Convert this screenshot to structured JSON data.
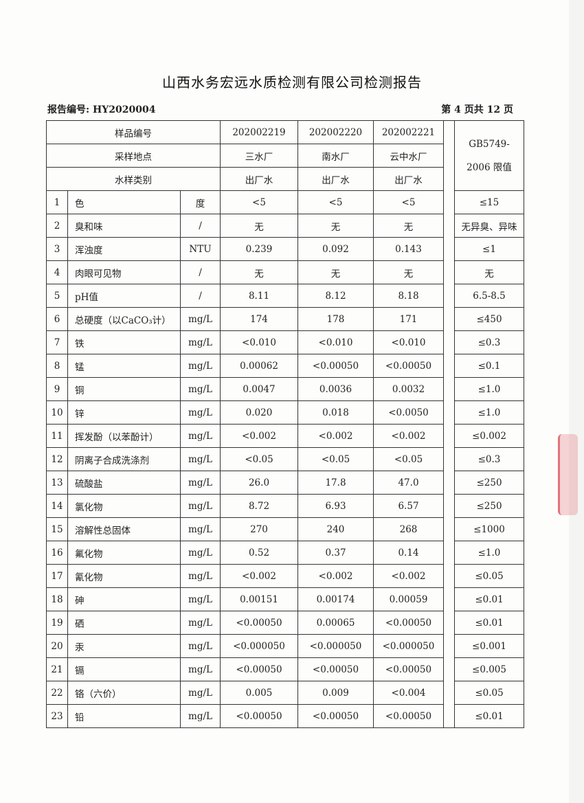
{
  "title": "山西水务宏远水质检测有限公司检测报告",
  "report_no": "报告编号: HY2020004",
  "page_info": "第 4 页共 12 页",
  "header": {
    "sample_no_label": "样品编号",
    "location_label": "采样地点",
    "type_label": "水样类别",
    "limit_label_1": "GB5749-",
    "limit_label_2": "2006 限值",
    "samples": [
      {
        "no": "202002219",
        "location": "三水厂",
        "type": "出厂水"
      },
      {
        "no": "202002220",
        "location": "南水厂",
        "type": "出厂水"
      },
      {
        "no": "202002221",
        "location": "云中水厂",
        "type": "出厂水"
      }
    ]
  },
  "rows": [
    {
      "n": "1",
      "item": "色",
      "unit": "度",
      "v": [
        "<5",
        "<5",
        "<5"
      ],
      "limit": "≤15"
    },
    {
      "n": "2",
      "item": "臭和味",
      "unit": "/",
      "v": [
        "无",
        "无",
        "无"
      ],
      "limit": "无异臭、异味"
    },
    {
      "n": "3",
      "item": "浑浊度",
      "unit": "NTU",
      "v": [
        "0.239",
        "0.092",
        "0.143"
      ],
      "limit": "≤1"
    },
    {
      "n": "4",
      "item": "肉眼可见物",
      "unit": "/",
      "v": [
        "无",
        "无",
        "无"
      ],
      "limit": "无"
    },
    {
      "n": "5",
      "item": "pH值",
      "unit": "/",
      "v": [
        "8.11",
        "8.12",
        "8.18"
      ],
      "limit": "6.5-8.5"
    },
    {
      "n": "6",
      "item": "总硬度（以CaCO₃计）",
      "unit": "mg/L",
      "v": [
        "174",
        "178",
        "171"
      ],
      "limit": "≤450"
    },
    {
      "n": "7",
      "item": "铁",
      "unit": "mg/L",
      "v": [
        "<0.010",
        "<0.010",
        "<0.010"
      ],
      "limit": "≤0.3"
    },
    {
      "n": "8",
      "item": "锰",
      "unit": "mg/L",
      "v": [
        "0.00062",
        "<0.00050",
        "<0.00050"
      ],
      "limit": "≤0.1"
    },
    {
      "n": "9",
      "item": "铜",
      "unit": "mg/L",
      "v": [
        "0.0047",
        "0.0036",
        "0.0032"
      ],
      "limit": "≤1.0"
    },
    {
      "n": "10",
      "item": "锌",
      "unit": "mg/L",
      "v": [
        "0.020",
        "0.018",
        "<0.0050"
      ],
      "limit": "≤1.0"
    },
    {
      "n": "11",
      "item": "挥发酚（以苯酚计）",
      "unit": "mg/L",
      "v": [
        "<0.002",
        "<0.002",
        "<0.002"
      ],
      "limit": "≤0.002"
    },
    {
      "n": "12",
      "item": "阴离子合成洗涤剂",
      "unit": "mg/L",
      "v": [
        "<0.05",
        "<0.05",
        "<0.05"
      ],
      "limit": "≤0.3"
    },
    {
      "n": "13",
      "item": "硫酸盐",
      "unit": "mg/L",
      "v": [
        "26.0",
        "17.8",
        "47.0"
      ],
      "limit": "≤250"
    },
    {
      "n": "14",
      "item": "氯化物",
      "unit": "mg/L",
      "v": [
        "8.72",
        "6.93",
        "6.57"
      ],
      "limit": "≤250"
    },
    {
      "n": "15",
      "item": "溶解性总固体",
      "unit": "mg/L",
      "v": [
        "270",
        "240",
        "268"
      ],
      "limit": "≤1000"
    },
    {
      "n": "16",
      "item": "氟化物",
      "unit": "mg/L",
      "v": [
        "0.52",
        "0.37",
        "0.14"
      ],
      "limit": "≤1.0"
    },
    {
      "n": "17",
      "item": "氰化物",
      "unit": "mg/L",
      "v": [
        "<0.002",
        "<0.002",
        "<0.002"
      ],
      "limit": "≤0.05"
    },
    {
      "n": "18",
      "item": "砷",
      "unit": "mg/L",
      "v": [
        "0.00151",
        "0.00174",
        "0.00059"
      ],
      "limit": "≤0.01"
    },
    {
      "n": "19",
      "item": "硒",
      "unit": "mg/L",
      "v": [
        "<0.00050",
        "0.00065",
        "<0.00050"
      ],
      "limit": "≤0.01"
    },
    {
      "n": "20",
      "item": "汞",
      "unit": "mg/L",
      "v": [
        "<0.000050",
        "<0.000050",
        "<0.000050"
      ],
      "limit": "≤0.001"
    },
    {
      "n": "21",
      "item": "镉",
      "unit": "mg/L",
      "v": [
        "<0.00050",
        "<0.00050",
        "<0.00050"
      ],
      "limit": "≤0.005"
    },
    {
      "n": "22",
      "item": "铬（六价）",
      "unit": "mg/L",
      "v": [
        "0.005",
        "0.009",
        "<0.004"
      ],
      "limit": "≤0.05"
    },
    {
      "n": "23",
      "item": "铅",
      "unit": "mg/L",
      "v": [
        "<0.00050",
        "<0.00050",
        "<0.00050"
      ],
      "limit": "≤0.01"
    }
  ]
}
